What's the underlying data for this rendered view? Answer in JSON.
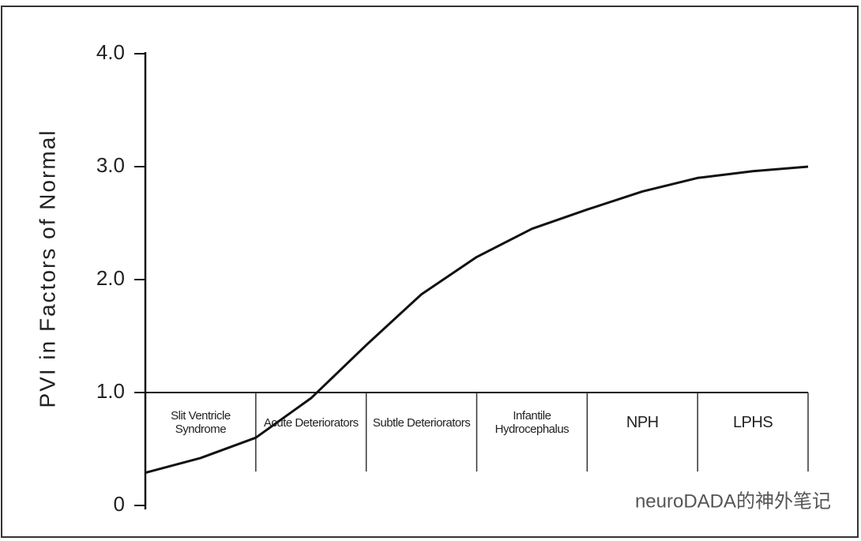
{
  "chart_data": {
    "type": "line",
    "y_label": "PVI in Factors of Normal",
    "categories": [
      "Slit Ventricle Syndrome",
      "Acute Deteriorators",
      "Subtle Deteriorators",
      "Infantile Hydrocephalus",
      "NPH",
      "LPHS"
    ],
    "x": [
      0,
      0.5,
      1,
      1.5,
      2,
      2.5,
      3,
      3.5,
      4,
      4.5,
      5,
      5.5,
      6
    ],
    "series": [
      {
        "color": "#111111",
        "values": [
          0.29,
          0.42,
          0.6,
          0.95,
          1.42,
          1.87,
          2.2,
          2.45,
          2.62,
          2.78,
          2.9,
          2.96,
          3.0
        ]
      }
    ],
    "xlim": [
      0,
      6
    ],
    "ylim": [
      0,
      4
    ],
    "yticks": [
      0,
      {
        "value": 1,
        "label": "1.0"
      },
      {
        "value": 2,
        "label": "2.0"
      },
      {
        "value": 3,
        "label": "3.0"
      },
      {
        "value": 4,
        "label": "4.0"
      }
    ],
    "annotations": [
      "neuroDADA的神外笔记"
    ]
  }
}
